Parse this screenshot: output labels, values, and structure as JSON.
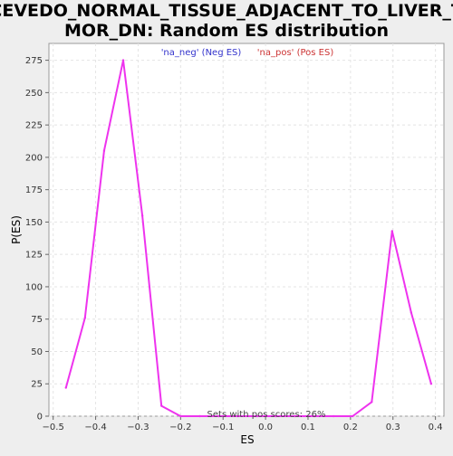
{
  "chart_data": {
    "type": "line",
    "title_lines": [
      "ACEVEDO_NORMAL_TISSUE_ADJACENT_TO_LIVER_TU",
      "MOR_DN: Random ES distribution"
    ],
    "xlabel": "ES",
    "ylabel": "P(ES)",
    "xlim": [
      -0.51,
      0.42
    ],
    "ylim": [
      0,
      288
    ],
    "xticks": [
      -0.5,
      -0.4,
      -0.3,
      -0.2,
      -0.1,
      0.0,
      0.1,
      0.2,
      0.3,
      0.4
    ],
    "xtick_labels": [
      "−0.5",
      "−0.4",
      "−0.3",
      "−0.2",
      "−0.1",
      "0.0",
      "0.1",
      "0.2",
      "0.3",
      "0.4"
    ],
    "yticks": [
      0,
      25,
      50,
      75,
      100,
      125,
      150,
      175,
      200,
      225,
      250,
      275
    ],
    "ytick_labels": [
      "0",
      "25",
      "50",
      "75",
      "100",
      "125",
      "150",
      "175",
      "200",
      "225",
      "250",
      "275"
    ],
    "grid": true,
    "legend": [
      {
        "label": "'na_neg' (Neg ES)",
        "color": "#3333cc"
      },
      {
        "label": "'na_pos' (Pos ES)",
        "color": "#cc3333"
      }
    ],
    "annotation": "Sets with pos scores: 26%",
    "series": [
      {
        "color": "#ee33ee",
        "x": [
          -0.47,
          -0.425,
          -0.38,
          -0.335,
          -0.29,
          -0.245,
          -0.2,
          -0.155,
          -0.11,
          -0.065,
          -0.02,
          0.025,
          0.07,
          0.115,
          0.16,
          0.205,
          0.25,
          0.298,
          0.343,
          0.39
        ],
        "y": [
          22,
          76,
          205,
          275,
          155,
          8,
          0,
          0,
          0,
          0,
          0,
          0,
          0,
          0,
          0,
          0,
          11,
          143,
          80,
          25
        ]
      }
    ]
  }
}
